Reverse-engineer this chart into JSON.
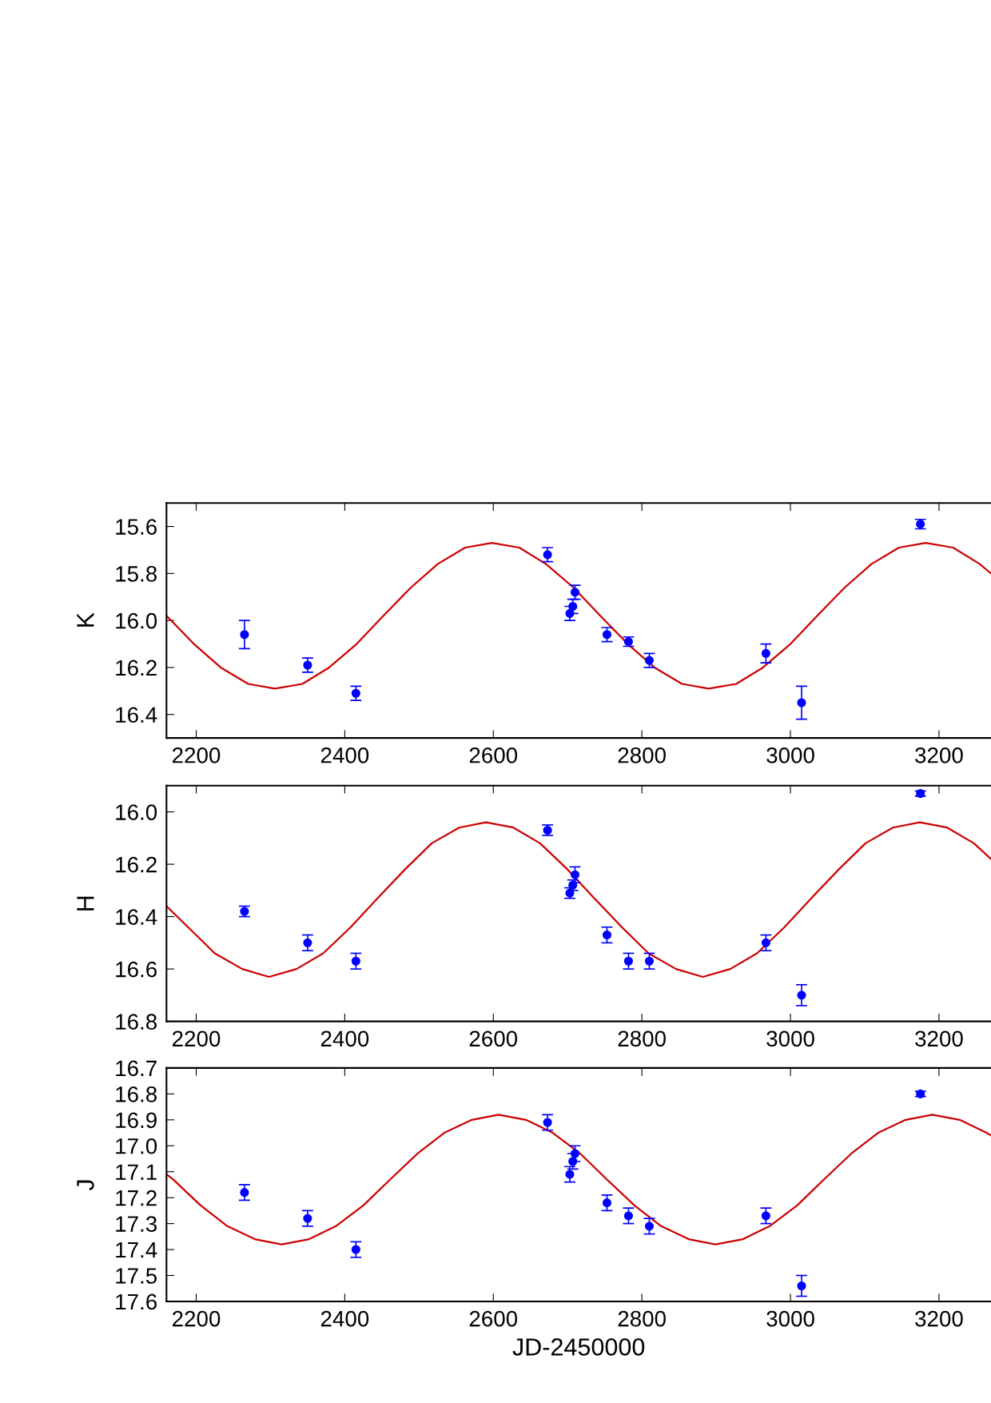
{
  "chart_data": [
    {
      "type": "scatter",
      "ylabel": "K",
      "xlim": [
        2160,
        3270
      ],
      "xticks": [
        2200,
        2400,
        2600,
        2800,
        3000,
        3200
      ],
      "ylim": [
        16.5,
        15.5
      ],
      "yticks": [
        {
          "value": 15.6,
          "label": "15.6"
        },
        {
          "value": 15.8,
          "label": "15.8"
        },
        {
          "value": 16.0,
          "label": "16.0"
        },
        {
          "value": 16.2,
          "label": "16.2"
        },
        {
          "value": 16.4,
          "label": "16.4"
        }
      ],
      "grid": false,
      "series": [
        {
          "type": "line",
          "color": "#cc0000",
          "x": [
            2160,
            2197,
            2233,
            2270,
            2306,
            2343,
            2379,
            2416,
            2452,
            2489,
            2525,
            2562,
            2598,
            2635,
            2671,
            2708,
            2744,
            2781,
            2817,
            2854,
            2890,
            2927,
            2963,
            3000,
            3036,
            3073,
            3109,
            3146,
            3182,
            3219,
            3255,
            3270
          ],
          "values": [
            15.98,
            16.1,
            16.2,
            16.27,
            16.29,
            16.27,
            16.2,
            16.1,
            15.98,
            15.86,
            15.76,
            15.69,
            15.67,
            15.69,
            15.76,
            15.86,
            15.98,
            16.1,
            16.2,
            16.27,
            16.29,
            16.27,
            16.2,
            16.1,
            15.98,
            15.86,
            15.76,
            15.69,
            15.67,
            15.69,
            15.76,
            15.8
          ]
        },
        {
          "marker": "circle",
          "color": "#0000ff",
          "x": [
            2265,
            2350,
            2415,
            2673,
            2703,
            2707,
            2710,
            2753,
            2782,
            2810,
            2967,
            3015,
            3175
          ],
          "values": [
            16.06,
            16.19,
            16.31,
            15.72,
            15.97,
            15.94,
            15.88,
            16.06,
            16.09,
            16.17,
            16.14,
            16.35,
            15.59
          ],
          "errors": [
            0.06,
            0.03,
            0.03,
            0.03,
            0.03,
            0.03,
            0.03,
            0.03,
            0.02,
            0.03,
            0.04,
            0.07,
            0.02
          ]
        }
      ]
    },
    {
      "type": "scatter",
      "ylabel": "H",
      "xlim": [
        2160,
        3270
      ],
      "xticks": [
        2200,
        2400,
        2600,
        2800,
        3000,
        3200
      ],
      "ylim": [
        16.8,
        15.9
      ],
      "yticks": [
        {
          "value": 16.0,
          "label": "16.0"
        },
        {
          "value": 16.2,
          "label": "16.2"
        },
        {
          "value": 16.4,
          "label": "16.4"
        },
        {
          "value": 16.6,
          "label": "16.6"
        },
        {
          "value": 16.8,
          "label": "16.8"
        }
      ],
      "grid": false,
      "series": [
        {
          "type": "line",
          "color": "#cc0000",
          "x": [
            2160,
            2189,
            2225,
            2262,
            2298,
            2335,
            2371,
            2408,
            2444,
            2481,
            2517,
            2554,
            2590,
            2627,
            2663,
            2700,
            2736,
            2773,
            2809,
            2846,
            2882,
            2919,
            2955,
            2992,
            3028,
            3065,
            3101,
            3138,
            3174,
            3211,
            3247,
            3270
          ],
          "values": [
            16.36,
            16.44,
            16.54,
            16.6,
            16.63,
            16.6,
            16.54,
            16.44,
            16.33,
            16.22,
            16.12,
            16.06,
            16.04,
            16.06,
            16.12,
            16.22,
            16.33,
            16.44,
            16.54,
            16.6,
            16.63,
            16.6,
            16.54,
            16.44,
            16.33,
            16.22,
            16.12,
            16.06,
            16.04,
            16.06,
            16.12,
            16.18
          ]
        },
        {
          "marker": "circle",
          "color": "#0000ff",
          "x": [
            2265,
            2350,
            2415,
            2673,
            2703,
            2707,
            2710,
            2753,
            2782,
            2810,
            2967,
            3015,
            3175
          ],
          "values": [
            16.38,
            16.5,
            16.57,
            16.07,
            16.31,
            16.28,
            16.24,
            16.47,
            16.57,
            16.57,
            16.5,
            16.7,
            15.93
          ],
          "errors": [
            0.02,
            0.03,
            0.03,
            0.02,
            0.02,
            0.02,
            0.03,
            0.03,
            0.03,
            0.03,
            0.03,
            0.04,
            0.01
          ]
        }
      ]
    },
    {
      "type": "scatter",
      "ylabel": "J",
      "xlabel": "JD-2450000",
      "xlim": [
        2160,
        3270
      ],
      "xticks": [
        2200,
        2400,
        2600,
        2800,
        3000,
        3200
      ],
      "ylim": [
        17.6,
        16.7
      ],
      "yticks": [
        {
          "value": 16.7,
          "label": "16.7"
        },
        {
          "value": 16.8,
          "label": "16.8"
        },
        {
          "value": 16.9,
          "label": "16.9"
        },
        {
          "value": 17.0,
          "label": "17.0"
        },
        {
          "value": 17.1,
          "label": "17.1"
        },
        {
          "value": 17.2,
          "label": "17.2"
        },
        {
          "value": 17.3,
          "label": "17.3"
        },
        {
          "value": 17.4,
          "label": "17.4"
        },
        {
          "value": 17.5,
          "label": "17.5"
        },
        {
          "value": 17.6,
          "label": "17.6"
        }
      ],
      "grid": false,
      "series": [
        {
          "type": "line",
          "color": "#cc0000",
          "x": [
            2160,
            2169,
            2206,
            2242,
            2279,
            2315,
            2352,
            2388,
            2425,
            2461,
            2498,
            2534,
            2571,
            2607,
            2644,
            2680,
            2717,
            2753,
            2790,
            2826,
            2863,
            2899,
            2936,
            2972,
            3009,
            3045,
            3082,
            3118,
            3155,
            3191,
            3228,
            3264,
            3270
          ],
          "values": [
            17.11,
            17.13,
            17.23,
            17.31,
            17.36,
            17.38,
            17.36,
            17.31,
            17.23,
            17.13,
            17.03,
            16.95,
            16.9,
            16.88,
            16.9,
            16.95,
            17.03,
            17.13,
            17.23,
            17.31,
            17.36,
            17.38,
            17.36,
            17.31,
            17.23,
            17.13,
            17.03,
            16.95,
            16.9,
            16.88,
            16.9,
            16.95,
            16.96
          ]
        },
        {
          "marker": "circle",
          "color": "#0000ff",
          "x": [
            2265,
            2350,
            2415,
            2673,
            2703,
            2707,
            2710,
            2753,
            2782,
            2810,
            2967,
            3015,
            3175
          ],
          "values": [
            17.18,
            17.28,
            17.4,
            16.91,
            17.11,
            17.06,
            17.03,
            17.22,
            17.27,
            17.31,
            17.27,
            17.54,
            16.8
          ],
          "errors": [
            0.03,
            0.03,
            0.03,
            0.03,
            0.03,
            0.03,
            0.03,
            0.03,
            0.03,
            0.03,
            0.03,
            0.04,
            0.01
          ]
        }
      ]
    }
  ]
}
